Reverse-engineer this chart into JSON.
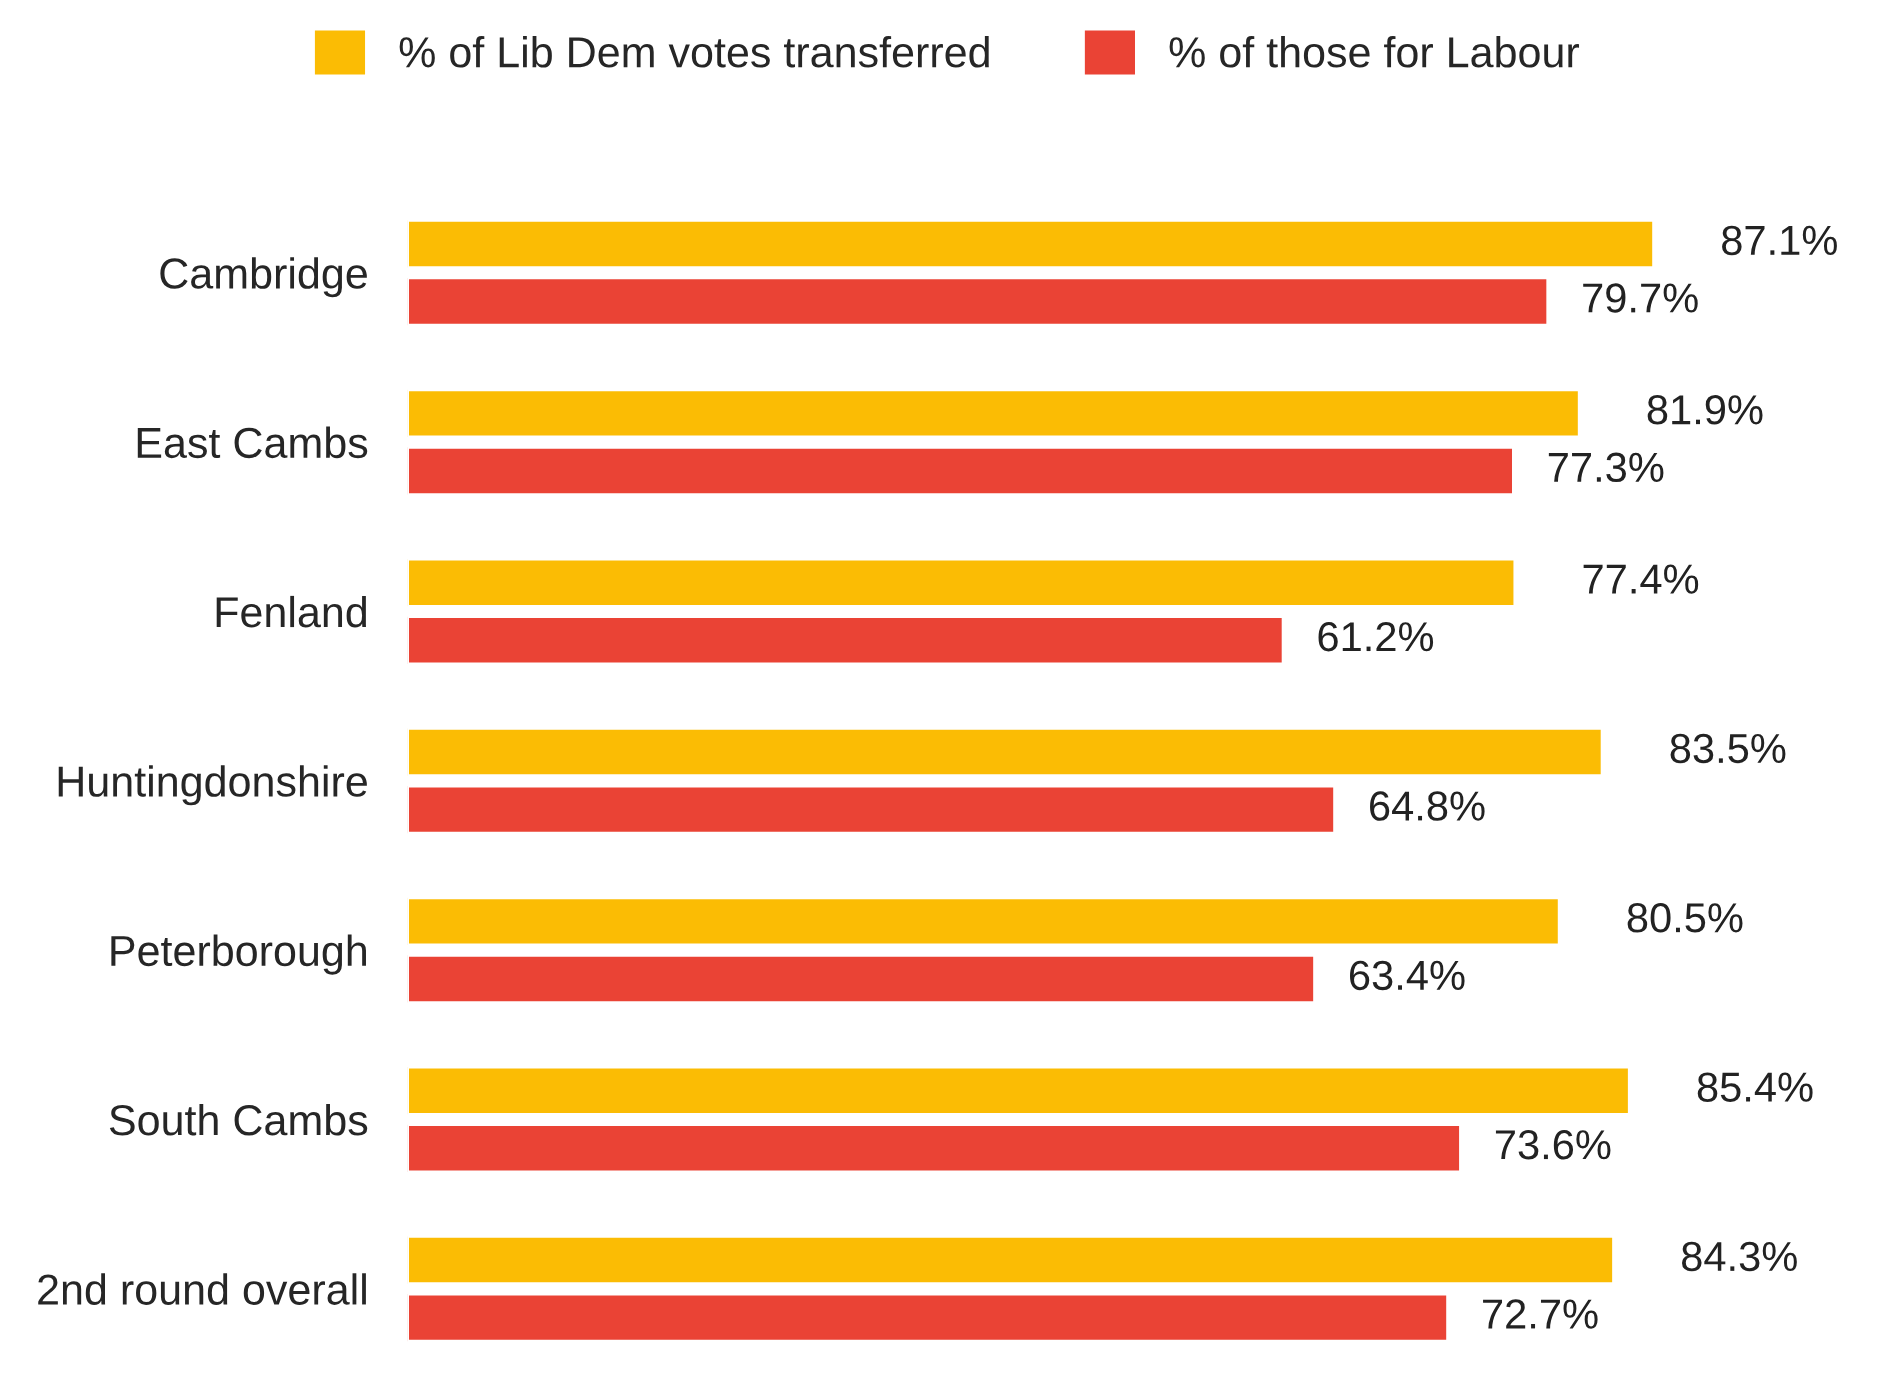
{
  "chart_data": {
    "type": "bar",
    "orientation": "horizontal",
    "categories": [
      "Cambridge",
      "East Cambs",
      "Fenland",
      "Huntingdonshire",
      "Peterborough",
      "South Cambs",
      "2nd round overall"
    ],
    "series": [
      {
        "name": "% of Lib Dem votes transferred",
        "color": "#fbbc04",
        "values": [
          87.1,
          81.9,
          77.4,
          83.5,
          80.5,
          85.4,
          84.3
        ],
        "value_labels": [
          "87.1%",
          "81.9%",
          "77.4%",
          "83.5%",
          "80.5%",
          "85.4%",
          "84.3%"
        ]
      },
      {
        "name": "% of those for Labour",
        "color": "#ea4335",
        "values": [
          79.7,
          77.3,
          61.2,
          64.8,
          63.4,
          73.6,
          72.7
        ],
        "value_labels": [
          "79.7%",
          "77.3%",
          "61.2%",
          "64.8%",
          "63.4%",
          "73.6%",
          "72.7%"
        ]
      }
    ],
    "legend": "top",
    "grid": false,
    "tick_labels": "y"
  }
}
